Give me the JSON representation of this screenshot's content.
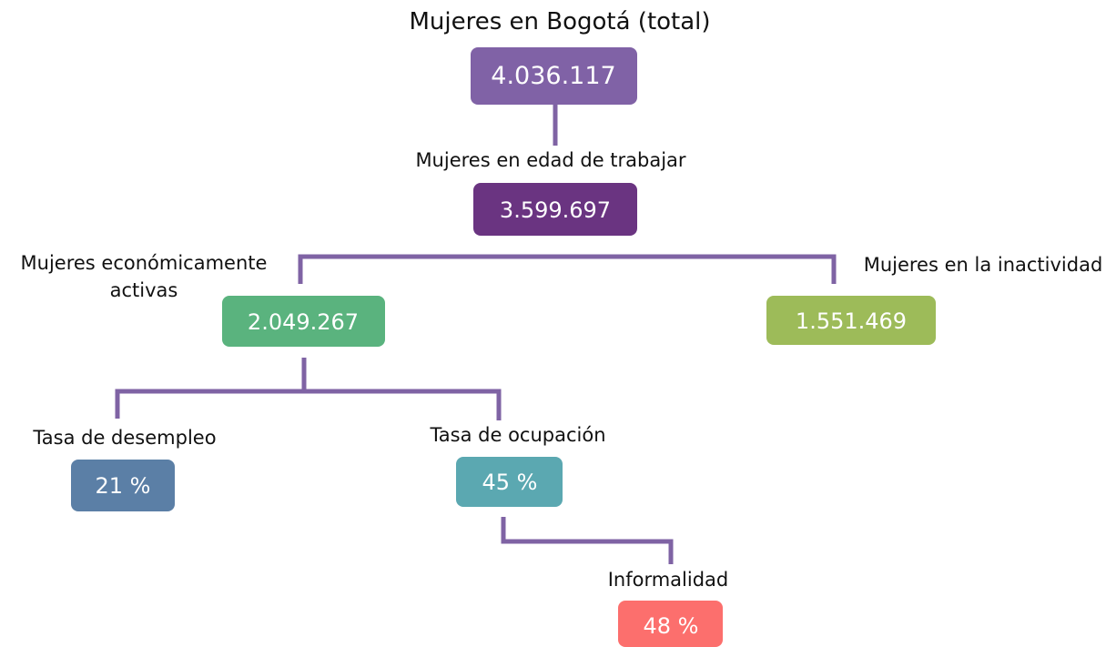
{
  "nodes": [
    {
      "label": "Mujeres en Bogotá (total)",
      "value": "4.036.117"
    },
    {
      "label": "Mujeres en edad de trabajar",
      "value": "3.599.697"
    },
    {
      "label": "Mujeres económicamente activas",
      "value": "2.049.267"
    },
    {
      "label": "Mujeres en la inactividad",
      "value": "1.551.469"
    },
    {
      "label": "Tasa de desempleo",
      "value": "21 %"
    },
    {
      "label": "Tasa de ocupación",
      "value": "45 %"
    },
    {
      "label": "Informalidad",
      "value": "48 %"
    }
  ]
}
